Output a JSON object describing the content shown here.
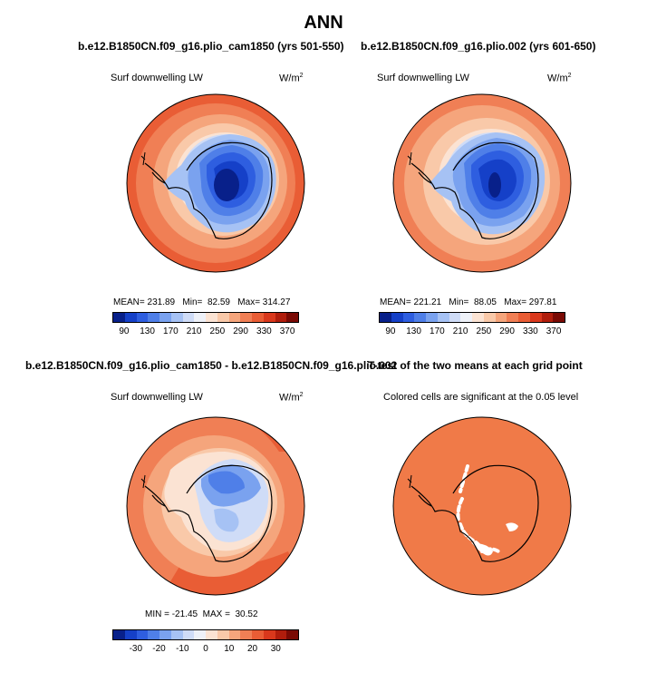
{
  "figure": {
    "title": "ANN"
  },
  "panels": {
    "p1": {
      "title": "b.e12.B1850CN.f09_g16.plio_cam1850 (yrs 501-550)",
      "variable": "Surf downwelling LW",
      "units_base": "W/m",
      "units_exp": "2",
      "stats": "MEAN= 231.89   Min=  82.59   Max= 314.27"
    },
    "p2": {
      "title": "b.e12.B1850CN.f09_g16.plio.002 (yrs 601-650)",
      "variable": "Surf downwelling LW",
      "units_base": "W/m",
      "units_exp": "2",
      "stats": "MEAN= 221.21   Min=  88.05   Max= 297.81"
    },
    "p3": {
      "title": "b.e12.B1850CN.f09_g16.plio_cam1850 - b.e12.B1850CN.f09_g16.plio.002",
      "variable": "Surf downwelling LW",
      "units_base": "W/m",
      "units_exp": "2",
      "stats": "MIN = -21.45  MAX =  30.52"
    },
    "p4": {
      "title": "T-test of the two means at each grid point",
      "subtitle": "Colored cells are significant at the 0.05 level"
    }
  },
  "chart_data": [
    {
      "type": "heatmap",
      "projection": "south polar stereographic",
      "colorbar": {
        "levels": [
          90,
          110,
          130,
          150,
          170,
          190,
          210,
          230,
          250,
          270,
          290,
          310,
          330,
          350,
          370
        ],
        "tick_labels": [
          "90",
          "130",
          "170",
          "210",
          "250",
          "290",
          "330",
          "370"
        ],
        "colors": [
          "#08208a",
          "#1540c8",
          "#2e5ee0",
          "#4f7fe8",
          "#7aa2ef",
          "#a6c2f4",
          "#cfdcf7",
          "#eef1f8",
          "#fbe3d3",
          "#f9c9a9",
          "#f5a57c",
          "#f07f55",
          "#e95d35",
          "#d9381c",
          "#b01d0c",
          "#7a0a04"
        ]
      },
      "stats": {
        "mean": 231.89,
        "min": 82.59,
        "max": 314.27
      }
    },
    {
      "type": "heatmap",
      "projection": "south polar stereographic",
      "colorbar": {
        "levels": [
          90,
          110,
          130,
          150,
          170,
          190,
          210,
          230,
          250,
          270,
          290,
          310,
          330,
          350,
          370
        ],
        "tick_labels": [
          "90",
          "130",
          "170",
          "210",
          "250",
          "290",
          "330",
          "370"
        ],
        "colors": [
          "#08208a",
          "#1540c8",
          "#2e5ee0",
          "#4f7fe8",
          "#7aa2ef",
          "#a6c2f4",
          "#cfdcf7",
          "#eef1f8",
          "#fbe3d3",
          "#f9c9a9",
          "#f5a57c",
          "#f07f55",
          "#e95d35",
          "#d9381c",
          "#b01d0c",
          "#7a0a04"
        ]
      },
      "stats": {
        "mean": 221.21,
        "min": 88.05,
        "max": 297.81
      }
    },
    {
      "type": "heatmap",
      "projection": "south polar stereographic",
      "colorbar": {
        "levels": [
          -35,
          -30,
          -25,
          -20,
          -15,
          -10,
          -5,
          0,
          5,
          10,
          15,
          20,
          25,
          30,
          35
        ],
        "tick_labels": [
          "-30",
          "-20",
          "-10",
          "0",
          "10",
          "20",
          "30"
        ],
        "colors": [
          "#08208a",
          "#1540c8",
          "#2e5ee0",
          "#4f7fe8",
          "#7aa2ef",
          "#a6c2f4",
          "#cfdcf7",
          "#eef1f8",
          "#fbe3d3",
          "#f9c9a9",
          "#f5a57c",
          "#f07f55",
          "#e95d35",
          "#d9381c",
          "#b01d0c",
          "#7a0a04"
        ]
      },
      "stats": {
        "min": -21.45,
        "max": 30.52
      }
    },
    {
      "type": "heatmap",
      "projection": "south polar stereographic",
      "significance_level": 0.05,
      "significant_color": "#f07a48",
      "not_significant_color": "#ffffff"
    }
  ]
}
